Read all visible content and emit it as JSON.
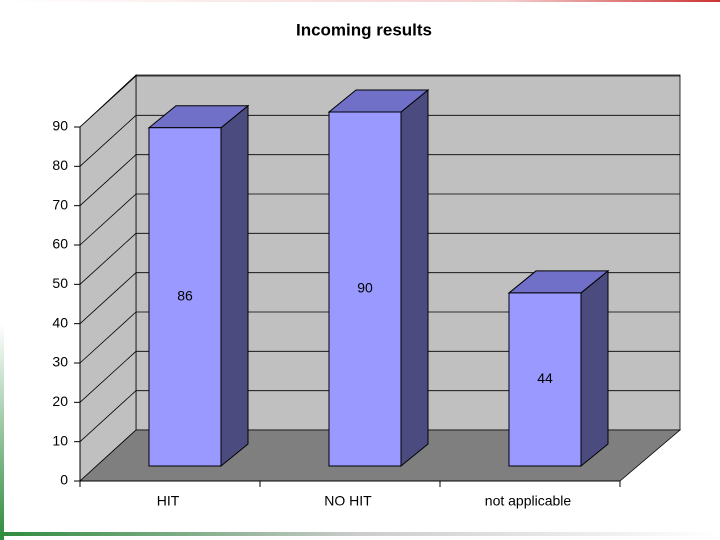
{
  "chart_data": {
    "type": "bar3d",
    "title": "Incoming results",
    "categories": [
      "HIT",
      "NO HIT",
      "not applicable"
    ],
    "values": [
      86,
      90,
      44
    ],
    "color": "#9999ff",
    "ylim": [
      0,
      90
    ],
    "yticks": [
      0,
      10,
      20,
      30,
      40,
      50,
      60,
      70,
      80,
      90
    ],
    "grid": true
  }
}
